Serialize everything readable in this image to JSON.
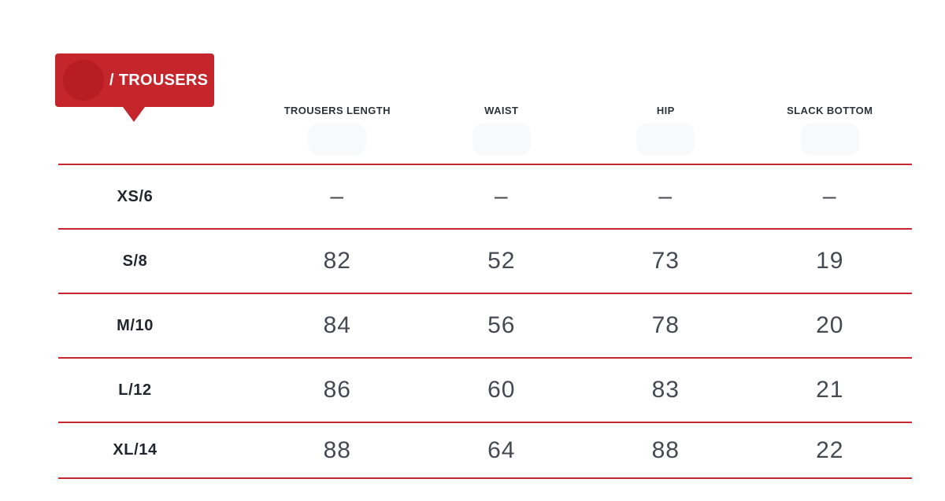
{
  "badge": {
    "label": "/ TROUSERS",
    "bg_color": "#c5262c",
    "circle_color": "#b81d24"
  },
  "table": {
    "line_color": "#c4272e",
    "columns": [
      "TROUSERS LENGTH",
      "WAIST",
      "HIP",
      "SLACK BOTTOM"
    ],
    "rows": [
      {
        "size": "XS/6",
        "values": [
          "–",
          "–",
          "–",
          "–"
        ]
      },
      {
        "size": "S/8",
        "values": [
          "82",
          "52",
          "73",
          "19"
        ]
      },
      {
        "size": "M/10",
        "values": [
          "84",
          "56",
          "78",
          "20"
        ]
      },
      {
        "size": "L/12",
        "values": [
          "86",
          "60",
          "83",
          "21"
        ]
      },
      {
        "size": "XL/14",
        "values": [
          "88",
          "64",
          "88",
          "22"
        ]
      }
    ]
  },
  "chart_data": {
    "type": "table",
    "title": "/ TROUSERS",
    "categories": [
      "XS/6",
      "S/8",
      "M/10",
      "L/12",
      "XL/14"
    ],
    "series": [
      {
        "name": "TROUSERS LENGTH",
        "values": [
          null,
          82,
          84,
          86,
          88
        ]
      },
      {
        "name": "WAIST",
        "values": [
          null,
          52,
          56,
          60,
          64
        ]
      },
      {
        "name": "HIP",
        "values": [
          null,
          73,
          78,
          83,
          88
        ]
      },
      {
        "name": "SLACK BOTTOM",
        "values": [
          null,
          19,
          20,
          21,
          22
        ]
      }
    ]
  }
}
